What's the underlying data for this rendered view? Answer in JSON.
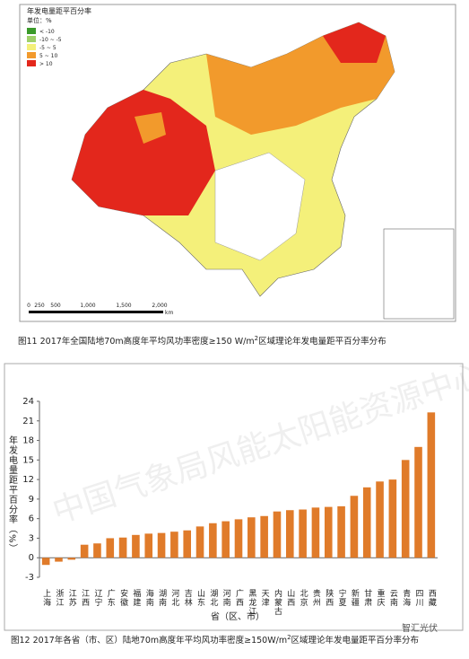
{
  "map": {
    "legend_title": "年发电量距平百分率",
    "legend_unit": "单位：%",
    "legend_items": [
      {
        "label": "< -10",
        "color": "#3a9a2a"
      },
      {
        "label": "-10 ~ -5",
        "color": "#9fd06a"
      },
      {
        "label": "-5 ~ 5",
        "color": "#f4f07a"
      },
      {
        "label": "5 ~ 10",
        "color": "#f29a2c"
      },
      {
        "label": "> 10",
        "color": "#e3271c"
      }
    ],
    "scale_labels": [
      "0",
      "250",
      "500",
      "1,000",
      "1,500",
      "2,000"
    ],
    "scale_unit": "km",
    "caption": {
      "prefix": "图11  2017年全国陆地70m高度年平均风功率密度≥150 W/m",
      "sup": "2",
      "suffix": "区域理论年发电量距平百分率分布"
    }
  },
  "watermarks": [
    "中国气象局风能太阳能资源中心",
    "智汇光伏"
  ],
  "chart_data": {
    "type": "bar",
    "color": "#e07b2a",
    "categories": [
      "上海",
      "浙江",
      "江苏",
      "江西",
      "辽宁",
      "广东",
      "安徽",
      "福建",
      "海南",
      "湖南",
      "河北",
      "吉林",
      "山东",
      "湖北",
      "河南",
      "广西",
      "黑龙江",
      "天津",
      "内蒙古",
      "山西",
      "北京",
      "贵州",
      "陕西",
      "宁夏",
      "新疆",
      "甘肃",
      "重庆",
      "云南",
      "青海",
      "四川",
      "西藏"
    ],
    "values": [
      -1.1,
      -0.6,
      -0.3,
      2.0,
      2.2,
      3.0,
      3.1,
      3.5,
      3.7,
      3.8,
      4.0,
      4.2,
      4.8,
      5.3,
      5.6,
      5.9,
      6.2,
      6.4,
      7.1,
      7.3,
      7.4,
      7.7,
      7.8,
      7.9,
      9.5,
      10.8,
      11.7,
      12.0,
      15.0,
      17.0,
      22.3
    ],
    "ylim": [
      -3,
      24
    ],
    "yticks": [
      -3,
      0,
      3,
      6,
      9,
      12,
      15,
      18,
      21,
      24
    ],
    "y_label": "年发电量距平百分率（%）",
    "x_label": "省（区、市）",
    "caption": {
      "prefix": "图12  2017年各省（市、区）陆地70m高度年平均风功率密度≥150W/m",
      "sup": "2",
      "suffix": "区域理论年发电量距平百分率分布"
    }
  }
}
